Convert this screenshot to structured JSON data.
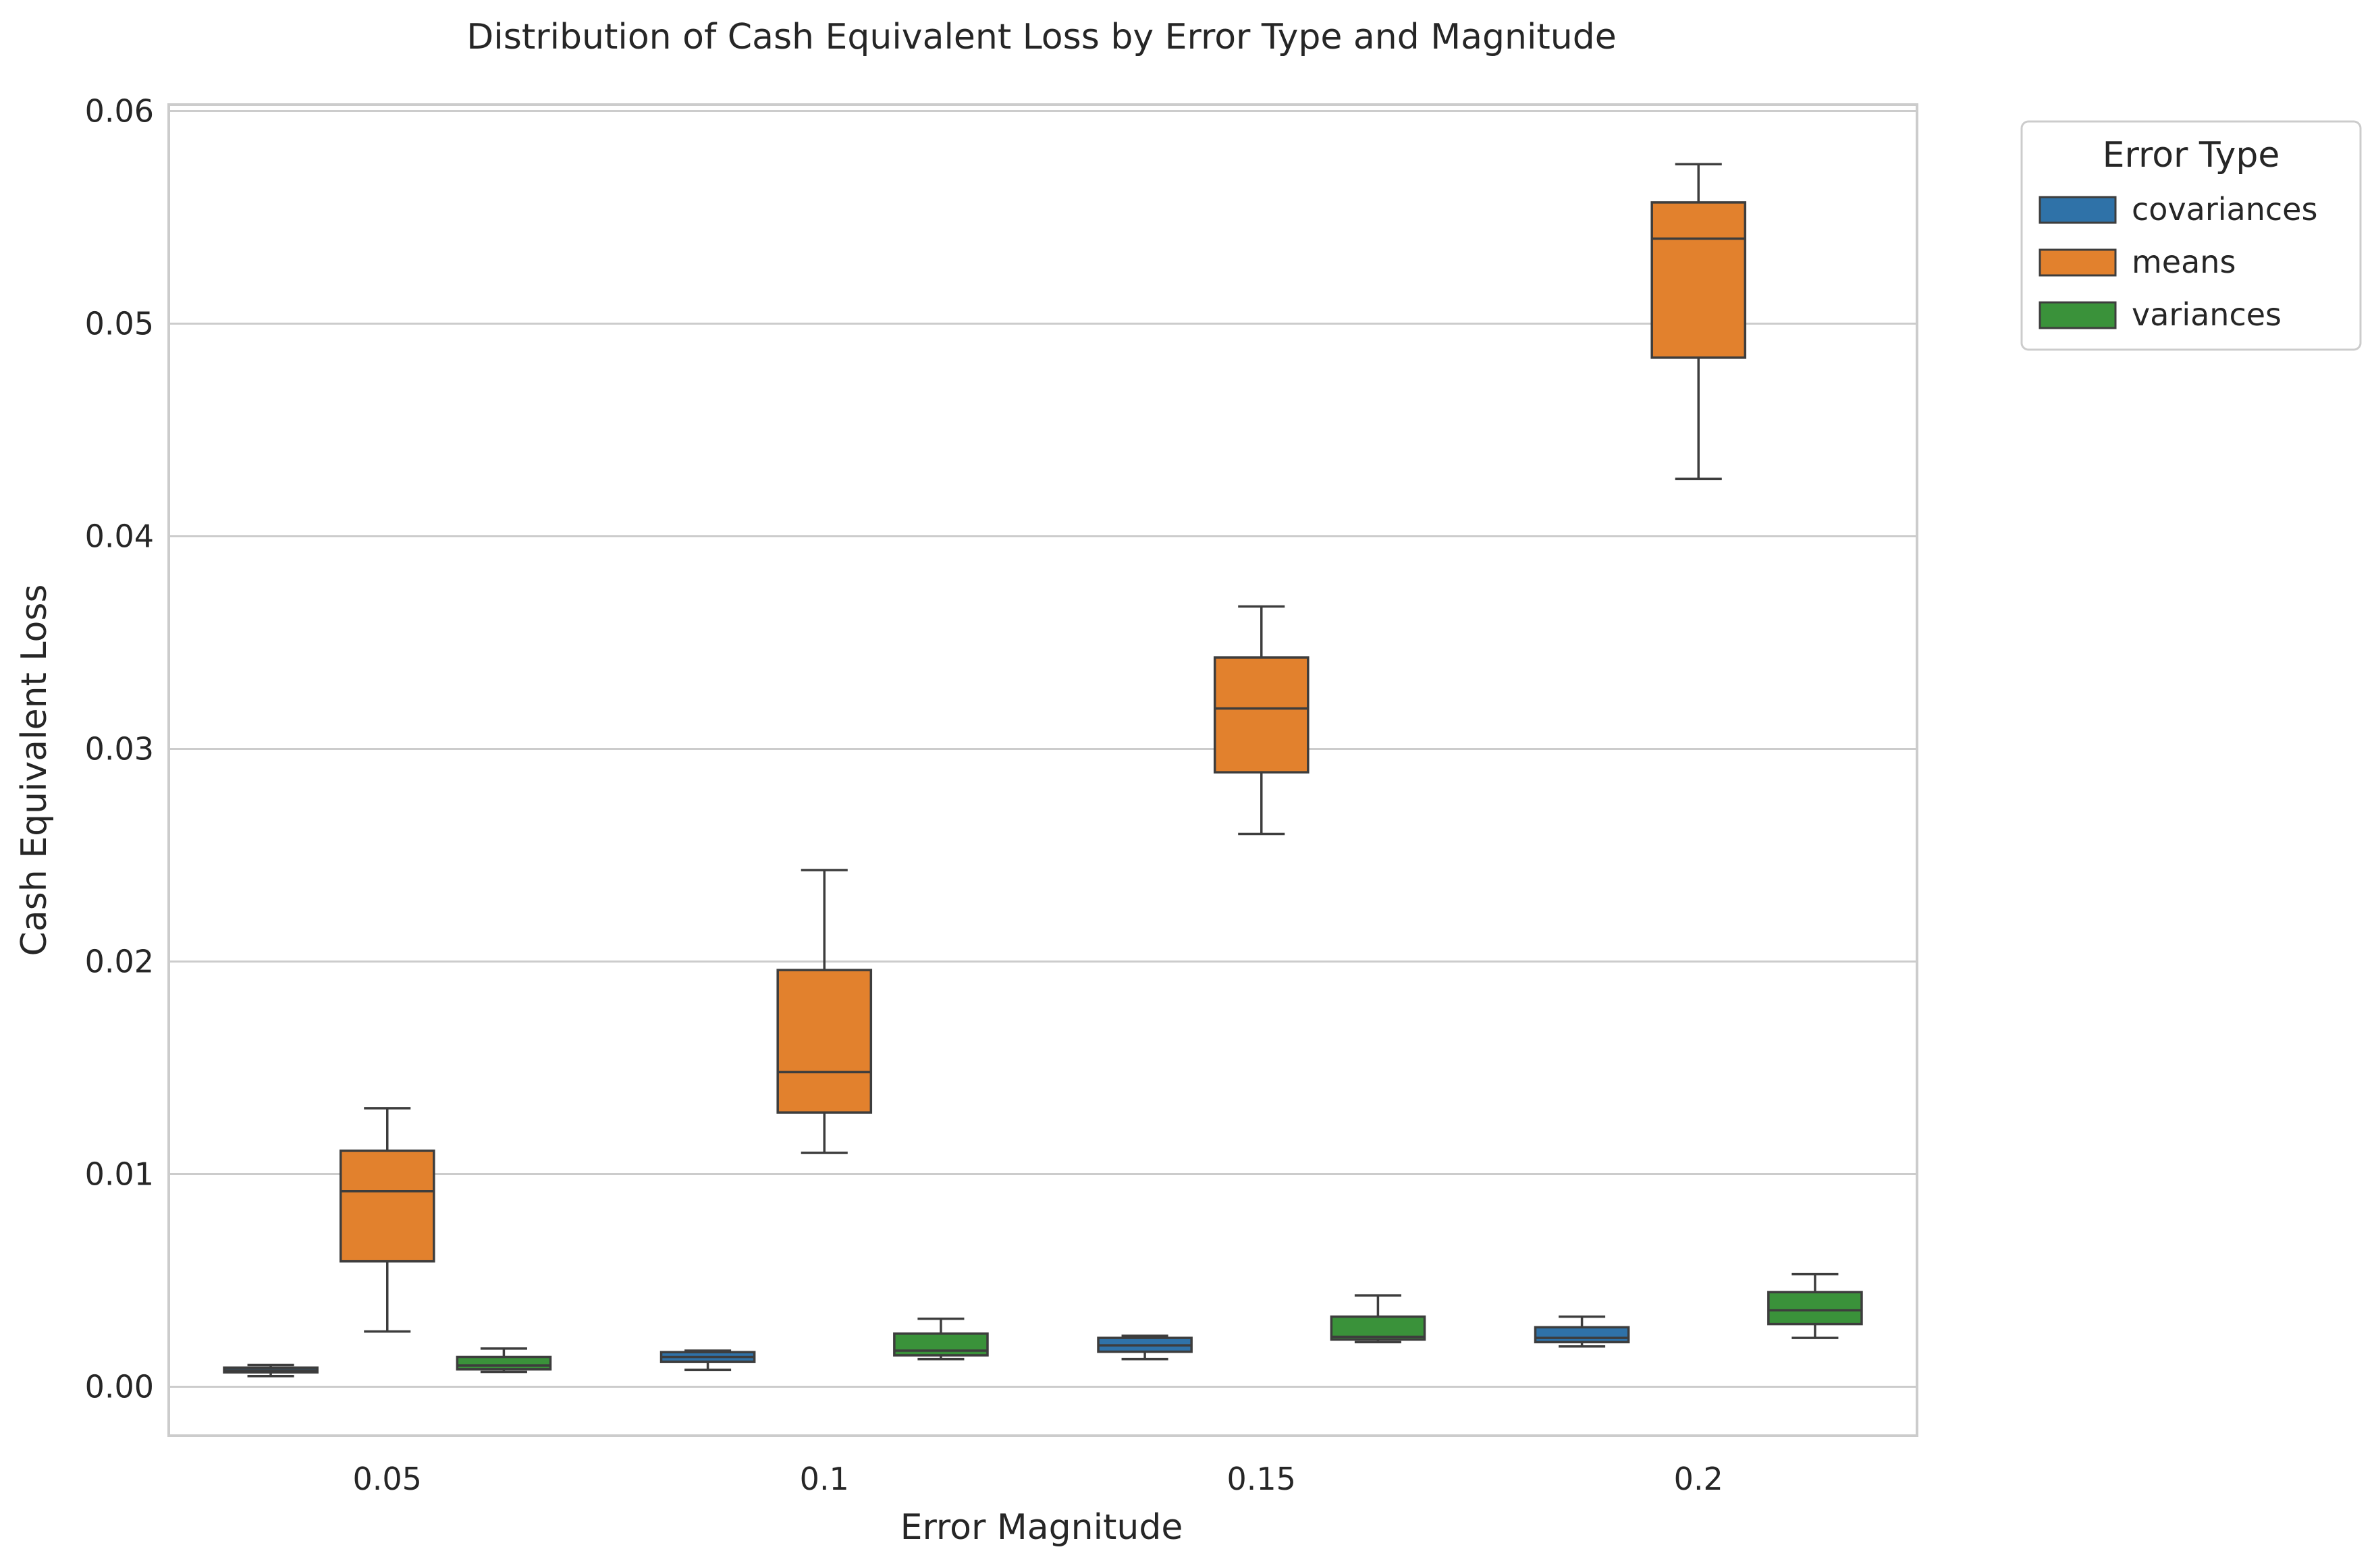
{
  "chart_data": {
    "type": "box",
    "title": "Distribution of Cash Equivalent Loss by Error Type and Magnitude",
    "xlabel": "Error Magnitude",
    "ylabel": "Cash Equivalent Loss",
    "categories": [
      "0.05",
      "0.1",
      "0.15",
      "0.2"
    ],
    "ylim": [
      -0.0023,
      0.0603
    ],
    "yticks": [
      0.0,
      0.01,
      0.02,
      0.03,
      0.04,
      0.05,
      0.06
    ],
    "ytick_labels": [
      "0.00",
      "0.01",
      "0.02",
      "0.03",
      "0.04",
      "0.05",
      "0.06"
    ],
    "grid": "y",
    "legend": {
      "title": "Error Type",
      "placement": "outside-top-right"
    },
    "series": [
      {
        "name": "covariances",
        "color": "#2f72a8",
        "boxes": [
          {
            "min": 0.0005,
            "q1": 0.00068,
            "median": 0.00078,
            "q3": 0.0009,
            "max": 0.00102
          },
          {
            "min": 0.0008,
            "q1": 0.00118,
            "median": 0.0014,
            "q3": 0.00163,
            "max": 0.0017
          },
          {
            "min": 0.0013,
            "q1": 0.00165,
            "median": 0.00195,
            "q3": 0.0023,
            "max": 0.0024
          },
          {
            "min": 0.0019,
            "q1": 0.0021,
            "median": 0.0023,
            "q3": 0.0028,
            "max": 0.0033
          }
        ]
      },
      {
        "name": "means",
        "color": "#e2812d",
        "boxes": [
          {
            "min": 0.0026,
            "q1": 0.0059,
            "median": 0.0092,
            "q3": 0.0111,
            "max": 0.0131
          },
          {
            "min": 0.011,
            "q1": 0.0129,
            "median": 0.0148,
            "q3": 0.0196,
            "max": 0.0243
          },
          {
            "min": 0.026,
            "q1": 0.0289,
            "median": 0.0319,
            "q3": 0.0343,
            "max": 0.0367
          },
          {
            "min": 0.0427,
            "q1": 0.0484,
            "median": 0.054,
            "q3": 0.0557,
            "max": 0.0575
          }
        ]
      },
      {
        "name": "variances",
        "color": "#3a923a",
        "boxes": [
          {
            "min": 0.0007,
            "q1": 0.00082,
            "median": 0.001,
            "q3": 0.0014,
            "max": 0.0018
          },
          {
            "min": 0.0013,
            "q1": 0.00148,
            "median": 0.0017,
            "q3": 0.0025,
            "max": 0.0032
          },
          {
            "min": 0.0021,
            "q1": 0.00222,
            "median": 0.00235,
            "q3": 0.0033,
            "max": 0.0043
          },
          {
            "min": 0.0023,
            "q1": 0.00295,
            "median": 0.0036,
            "q3": 0.00445,
            "max": 0.0053
          }
        ]
      }
    ]
  }
}
